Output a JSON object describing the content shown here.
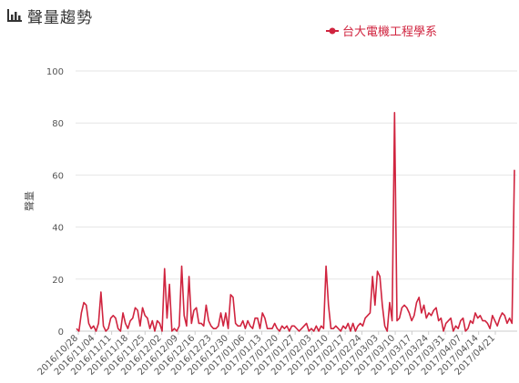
{
  "header": {
    "title": "聲量趨勢",
    "icon": "bar-chart-icon"
  },
  "chart_data": {
    "type": "line",
    "title": "",
    "ylabel": "聲量",
    "ylim": [
      0,
      100
    ],
    "yticks": [
      0,
      20,
      40,
      60,
      80,
      100
    ],
    "grid": true,
    "legend_position": "top-right",
    "color": "#d0243f",
    "x_tick_labels": [
      "2016/10/28",
      "2016/11/04",
      "2016/11/11",
      "2016/11/18",
      "2016/11/25",
      "2016/12/02",
      "2016/12/09",
      "2016/12/16",
      "2016/12/23",
      "2016/12/30",
      "2017/01/06",
      "2017/01/13",
      "2017/01/20",
      "2017/01/27",
      "2017/02/03",
      "2017/02/10",
      "2017/02/17",
      "2017/02/24",
      "2017/03/03",
      "2017/03/10",
      "2017/03/17",
      "2017/03/24",
      "2017/03/31",
      "2017/04/07",
      "2017/04/14",
      "2017/04/21"
    ],
    "series": [
      {
        "name": "台大電機工程學系",
        "values": [
          1,
          0,
          7,
          11,
          10,
          3,
          1,
          2,
          0,
          3,
          15,
          2,
          0,
          1,
          5,
          6,
          5,
          1,
          0,
          7,
          3,
          1,
          4,
          5,
          9,
          8,
          2,
          9,
          6,
          5,
          1,
          4,
          0,
          4,
          3,
          0,
          24,
          5,
          18,
          0,
          1,
          0,
          2,
          25,
          6,
          2,
          21,
          3,
          8,
          9,
          3,
          3,
          2,
          10,
          4,
          2,
          1,
          1,
          2,
          7,
          2,
          7,
          1,
          14,
          13,
          3,
          2,
          2,
          4,
          1,
          4,
          2,
          1,
          5,
          5,
          1,
          7,
          5,
          1,
          1,
          1,
          3,
          1,
          0,
          2,
          1,
          2,
          0,
          2,
          2,
          1,
          0,
          1,
          2,
          3,
          0,
          1,
          0,
          2,
          0,
          2,
          1,
          25,
          10,
          1,
          1,
          2,
          1,
          0,
          2,
          1,
          3,
          0,
          3,
          0,
          2,
          3,
          2,
          5,
          6,
          7,
          21,
          10,
          23,
          21,
          10,
          2,
          0,
          11,
          4,
          84,
          4,
          5,
          9,
          10,
          9,
          7,
          4,
          6,
          11,
          13,
          7,
          10,
          5,
          7,
          6,
          8,
          9,
          4,
          5,
          0,
          3,
          4,
          5,
          0,
          2,
          1,
          4,
          5,
          0,
          1,
          4,
          3,
          7,
          5,
          6,
          4,
          4,
          3,
          1,
          6,
          4,
          2,
          5,
          7,
          6,
          3,
          5,
          3,
          62
        ]
      }
    ]
  }
}
